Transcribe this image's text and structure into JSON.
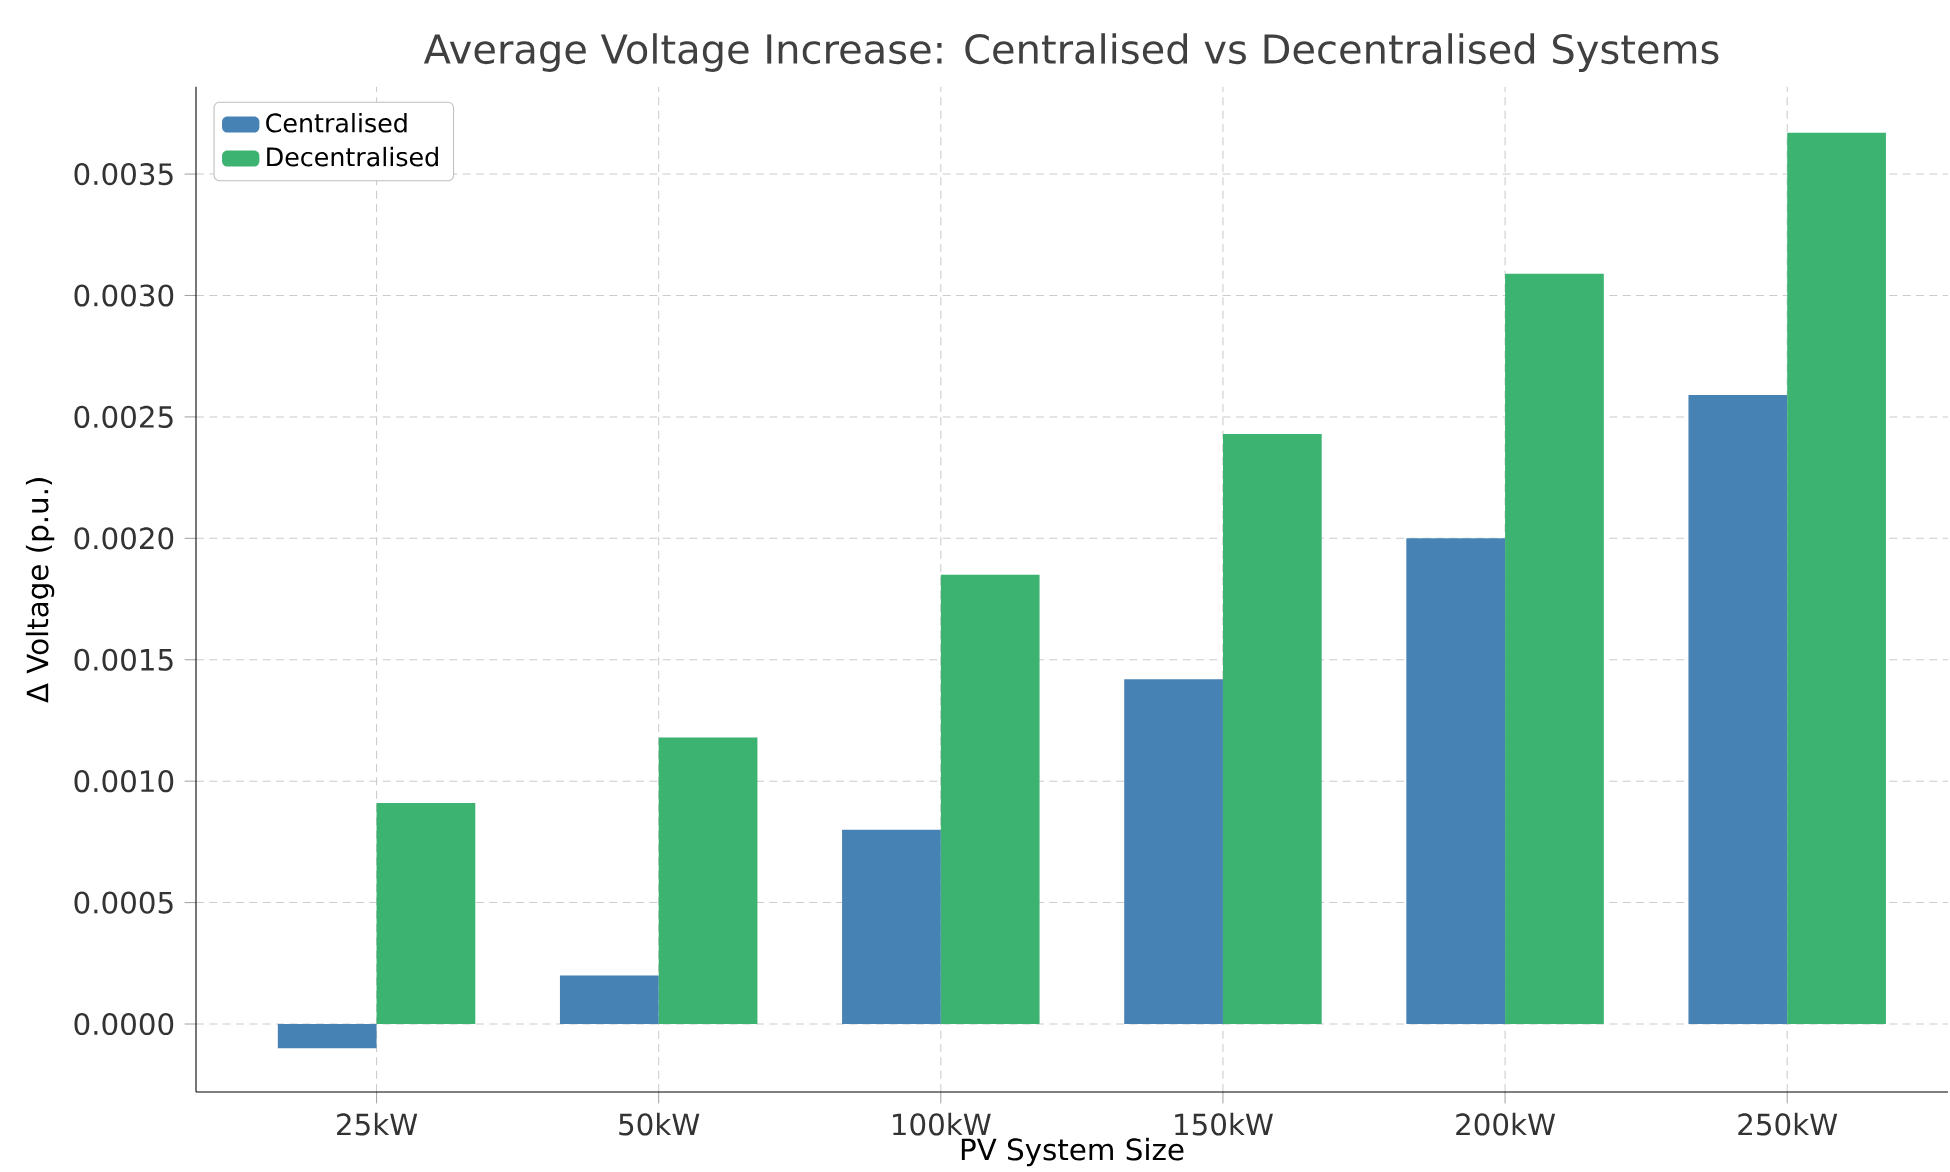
{
  "chart_data": {
    "type": "bar",
    "title": "Average Voltage Increase: Centralised vs Decentralised Systems",
    "xlabel": "PV System Size",
    "ylabel": "Δ Voltage (p.u.)",
    "categories": [
      "25kW",
      "50kW",
      "100kW",
      "150kW",
      "200kW",
      "250kW"
    ],
    "series": [
      {
        "name": "Centralised",
        "color": "#4682b4",
        "values": [
          -0.0001,
          0.0002,
          0.0008,
          0.00142,
          0.002,
          0.00259
        ]
      },
      {
        "name": "Decentralised",
        "color": "#3cb371",
        "values": [
          0.00091,
          0.00118,
          0.00185,
          0.00243,
          0.00309,
          0.00367
        ]
      }
    ],
    "ylim": [
      -0.00028,
      0.00386
    ],
    "yticks": [
      {
        "value": 0,
        "label": "0.0000"
      },
      {
        "value": 0.0005,
        "label": "0.0005"
      },
      {
        "value": 0.001,
        "label": "0.0010"
      },
      {
        "value": 0.0015,
        "label": "0.0015"
      },
      {
        "value": 0.002,
        "label": "0.0020"
      },
      {
        "value": 0.0025,
        "label": "0.0025"
      },
      {
        "value": 0.003,
        "label": "0.0030"
      },
      {
        "value": 0.0035,
        "label": "0.0035"
      }
    ],
    "grid": true,
    "legend": "top left"
  }
}
